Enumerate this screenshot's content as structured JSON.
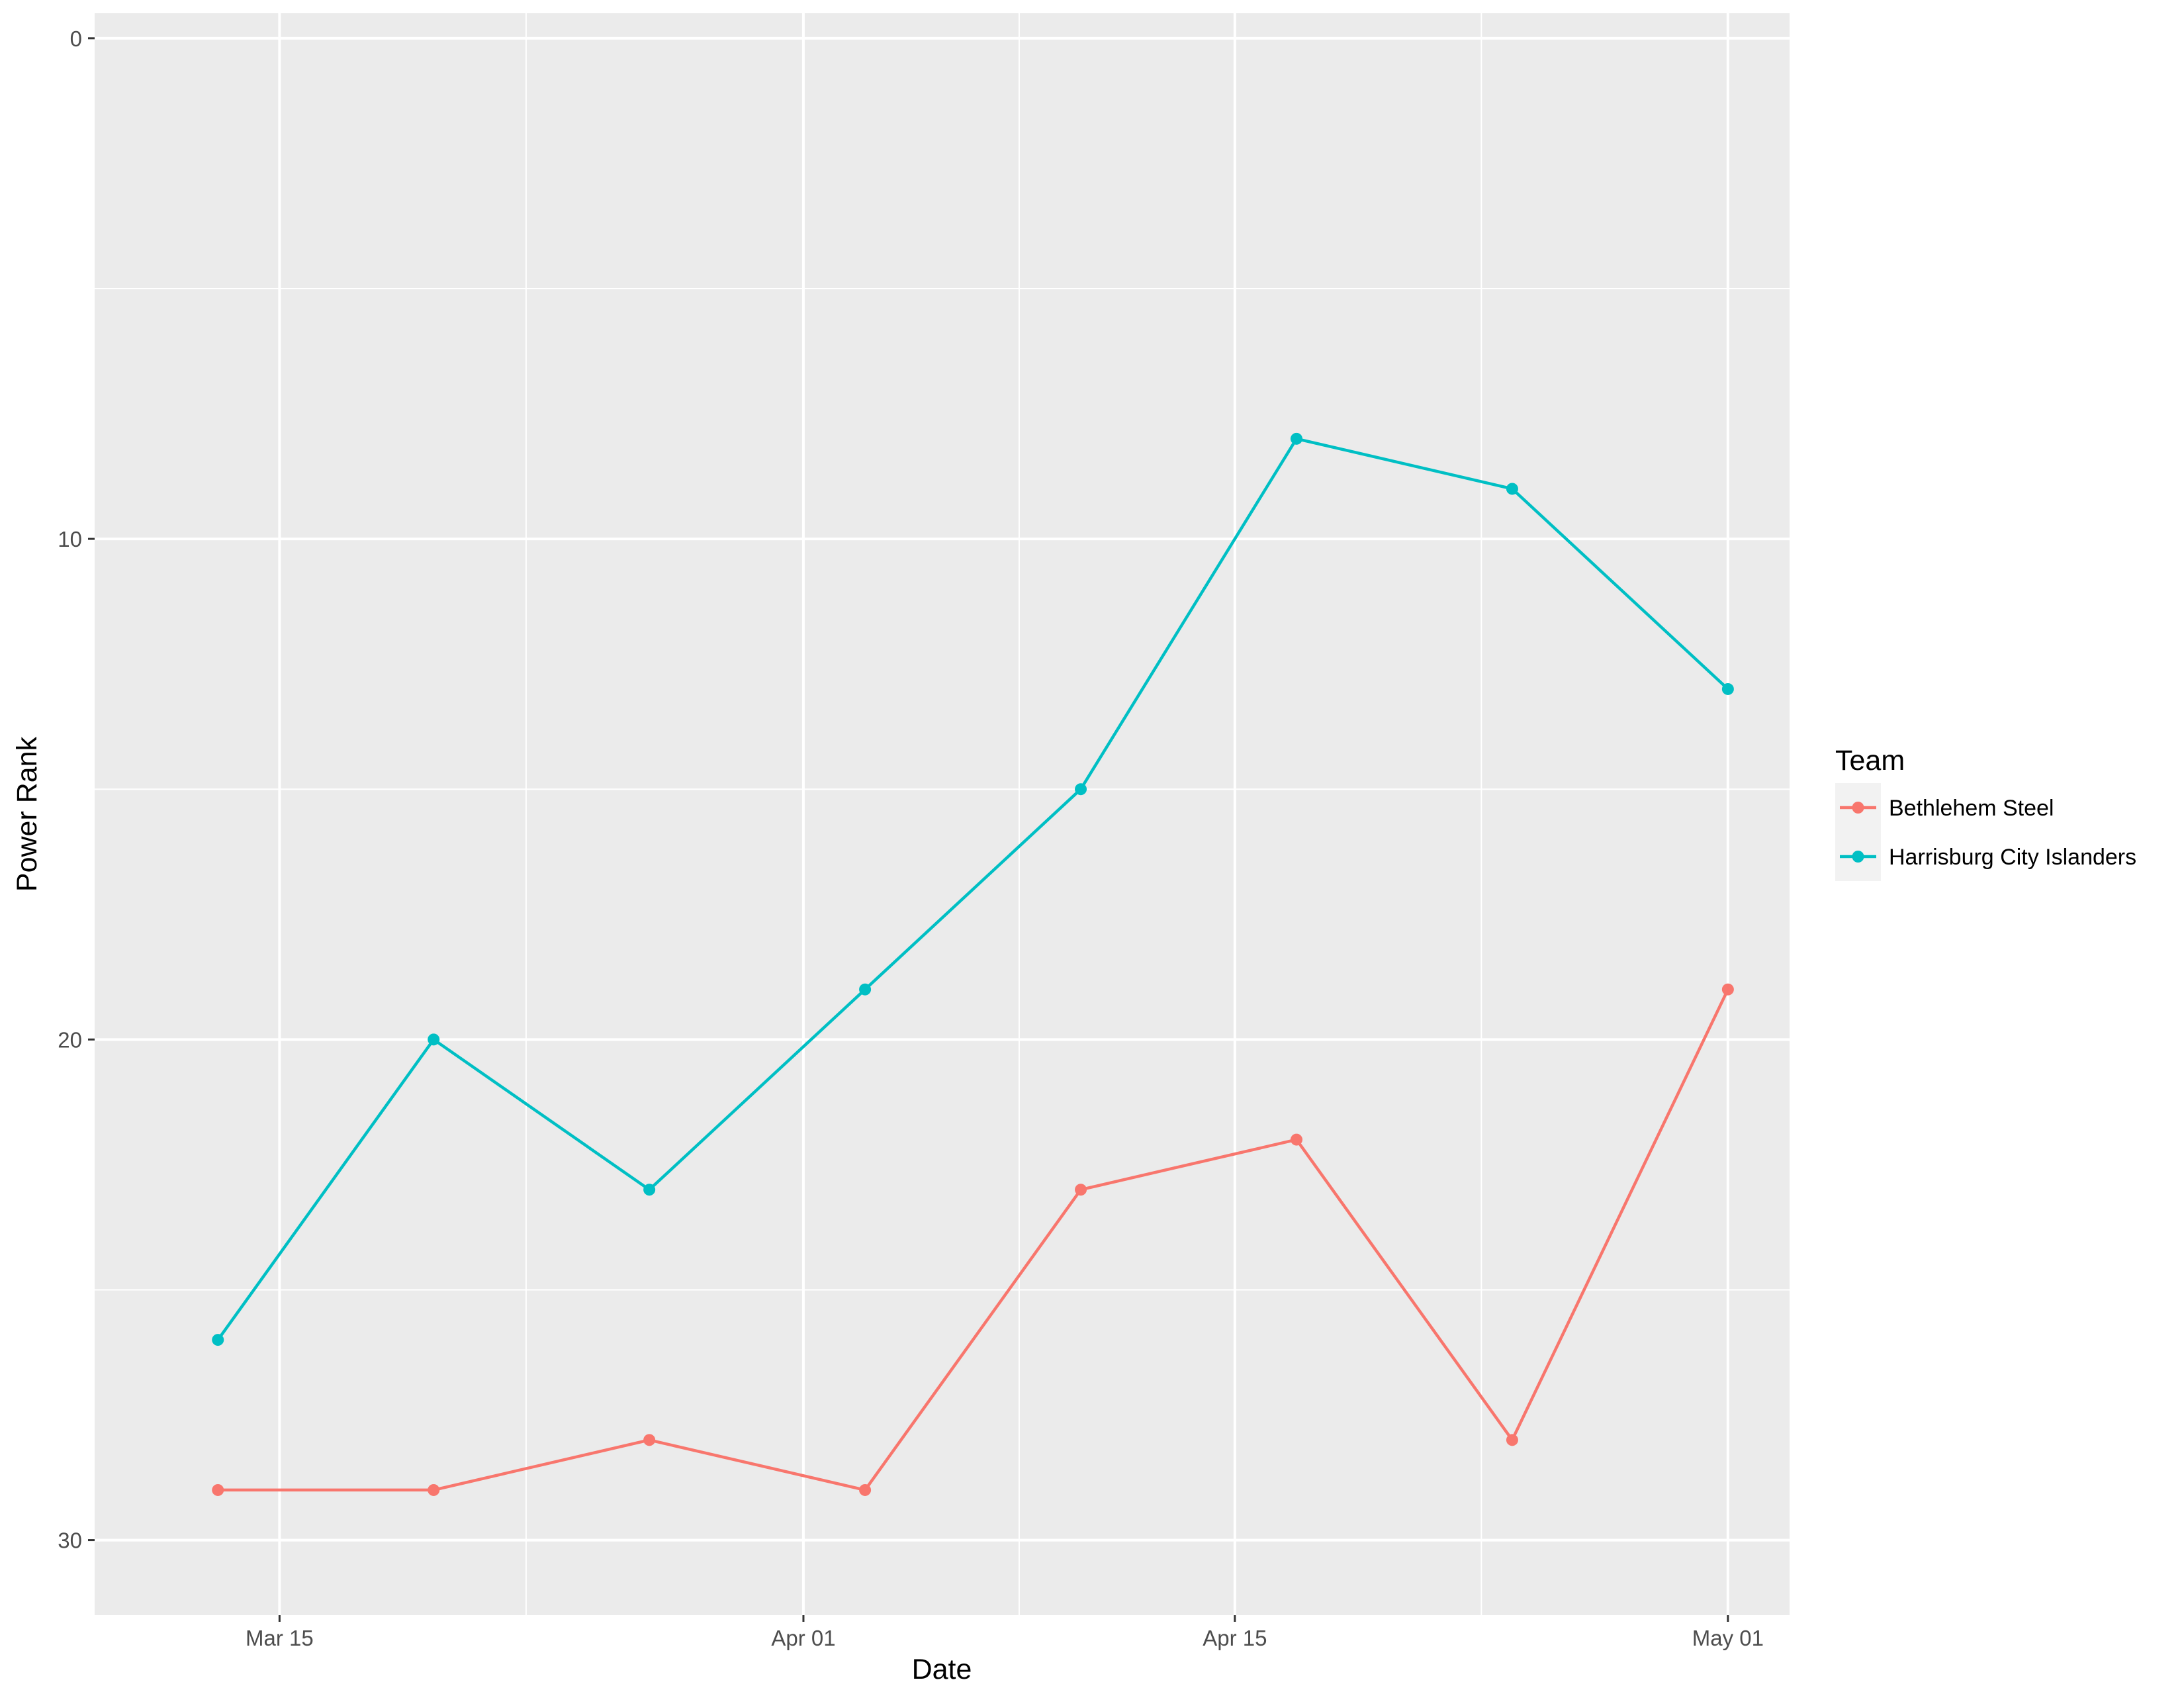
{
  "chart_data": {
    "type": "line",
    "xlabel": "Date",
    "ylabel": "Power Rank",
    "x_tick_labels": [
      "Mar 15",
      "Apr 01",
      "Apr 15",
      "May 01"
    ],
    "x_ticks": [
      "2018-03-15",
      "2018-04-01",
      "2018-04-15",
      "2018-05-01"
    ],
    "y_ticks": [
      0,
      10,
      20,
      30
    ],
    "ylim": [
      31.5,
      -0.5
    ],
    "y_reversed": true,
    "xlim": [
      "2018-03-09",
      "2018-05-03"
    ],
    "grid": true,
    "legend": {
      "title": "Team",
      "position": "right"
    },
    "x": [
      "2018-03-13",
      "2018-03-20",
      "2018-03-27",
      "2018-04-03",
      "2018-04-10",
      "2018-04-17",
      "2018-04-24",
      "2018-05-01"
    ],
    "series": [
      {
        "name": "Bethlehem Steel",
        "color": "#F8766D",
        "values": [
          29,
          29,
          28,
          29,
          23,
          22,
          28,
          19
        ]
      },
      {
        "name": "Harrisburg City Islanders",
        "color": "#00BFC4",
        "values": [
          26,
          20,
          23,
          19,
          15,
          8,
          9,
          13
        ]
      }
    ]
  },
  "colors": {
    "panel": "#EBEBEB",
    "grid": "#FFFFFF",
    "tick": "#333333"
  }
}
